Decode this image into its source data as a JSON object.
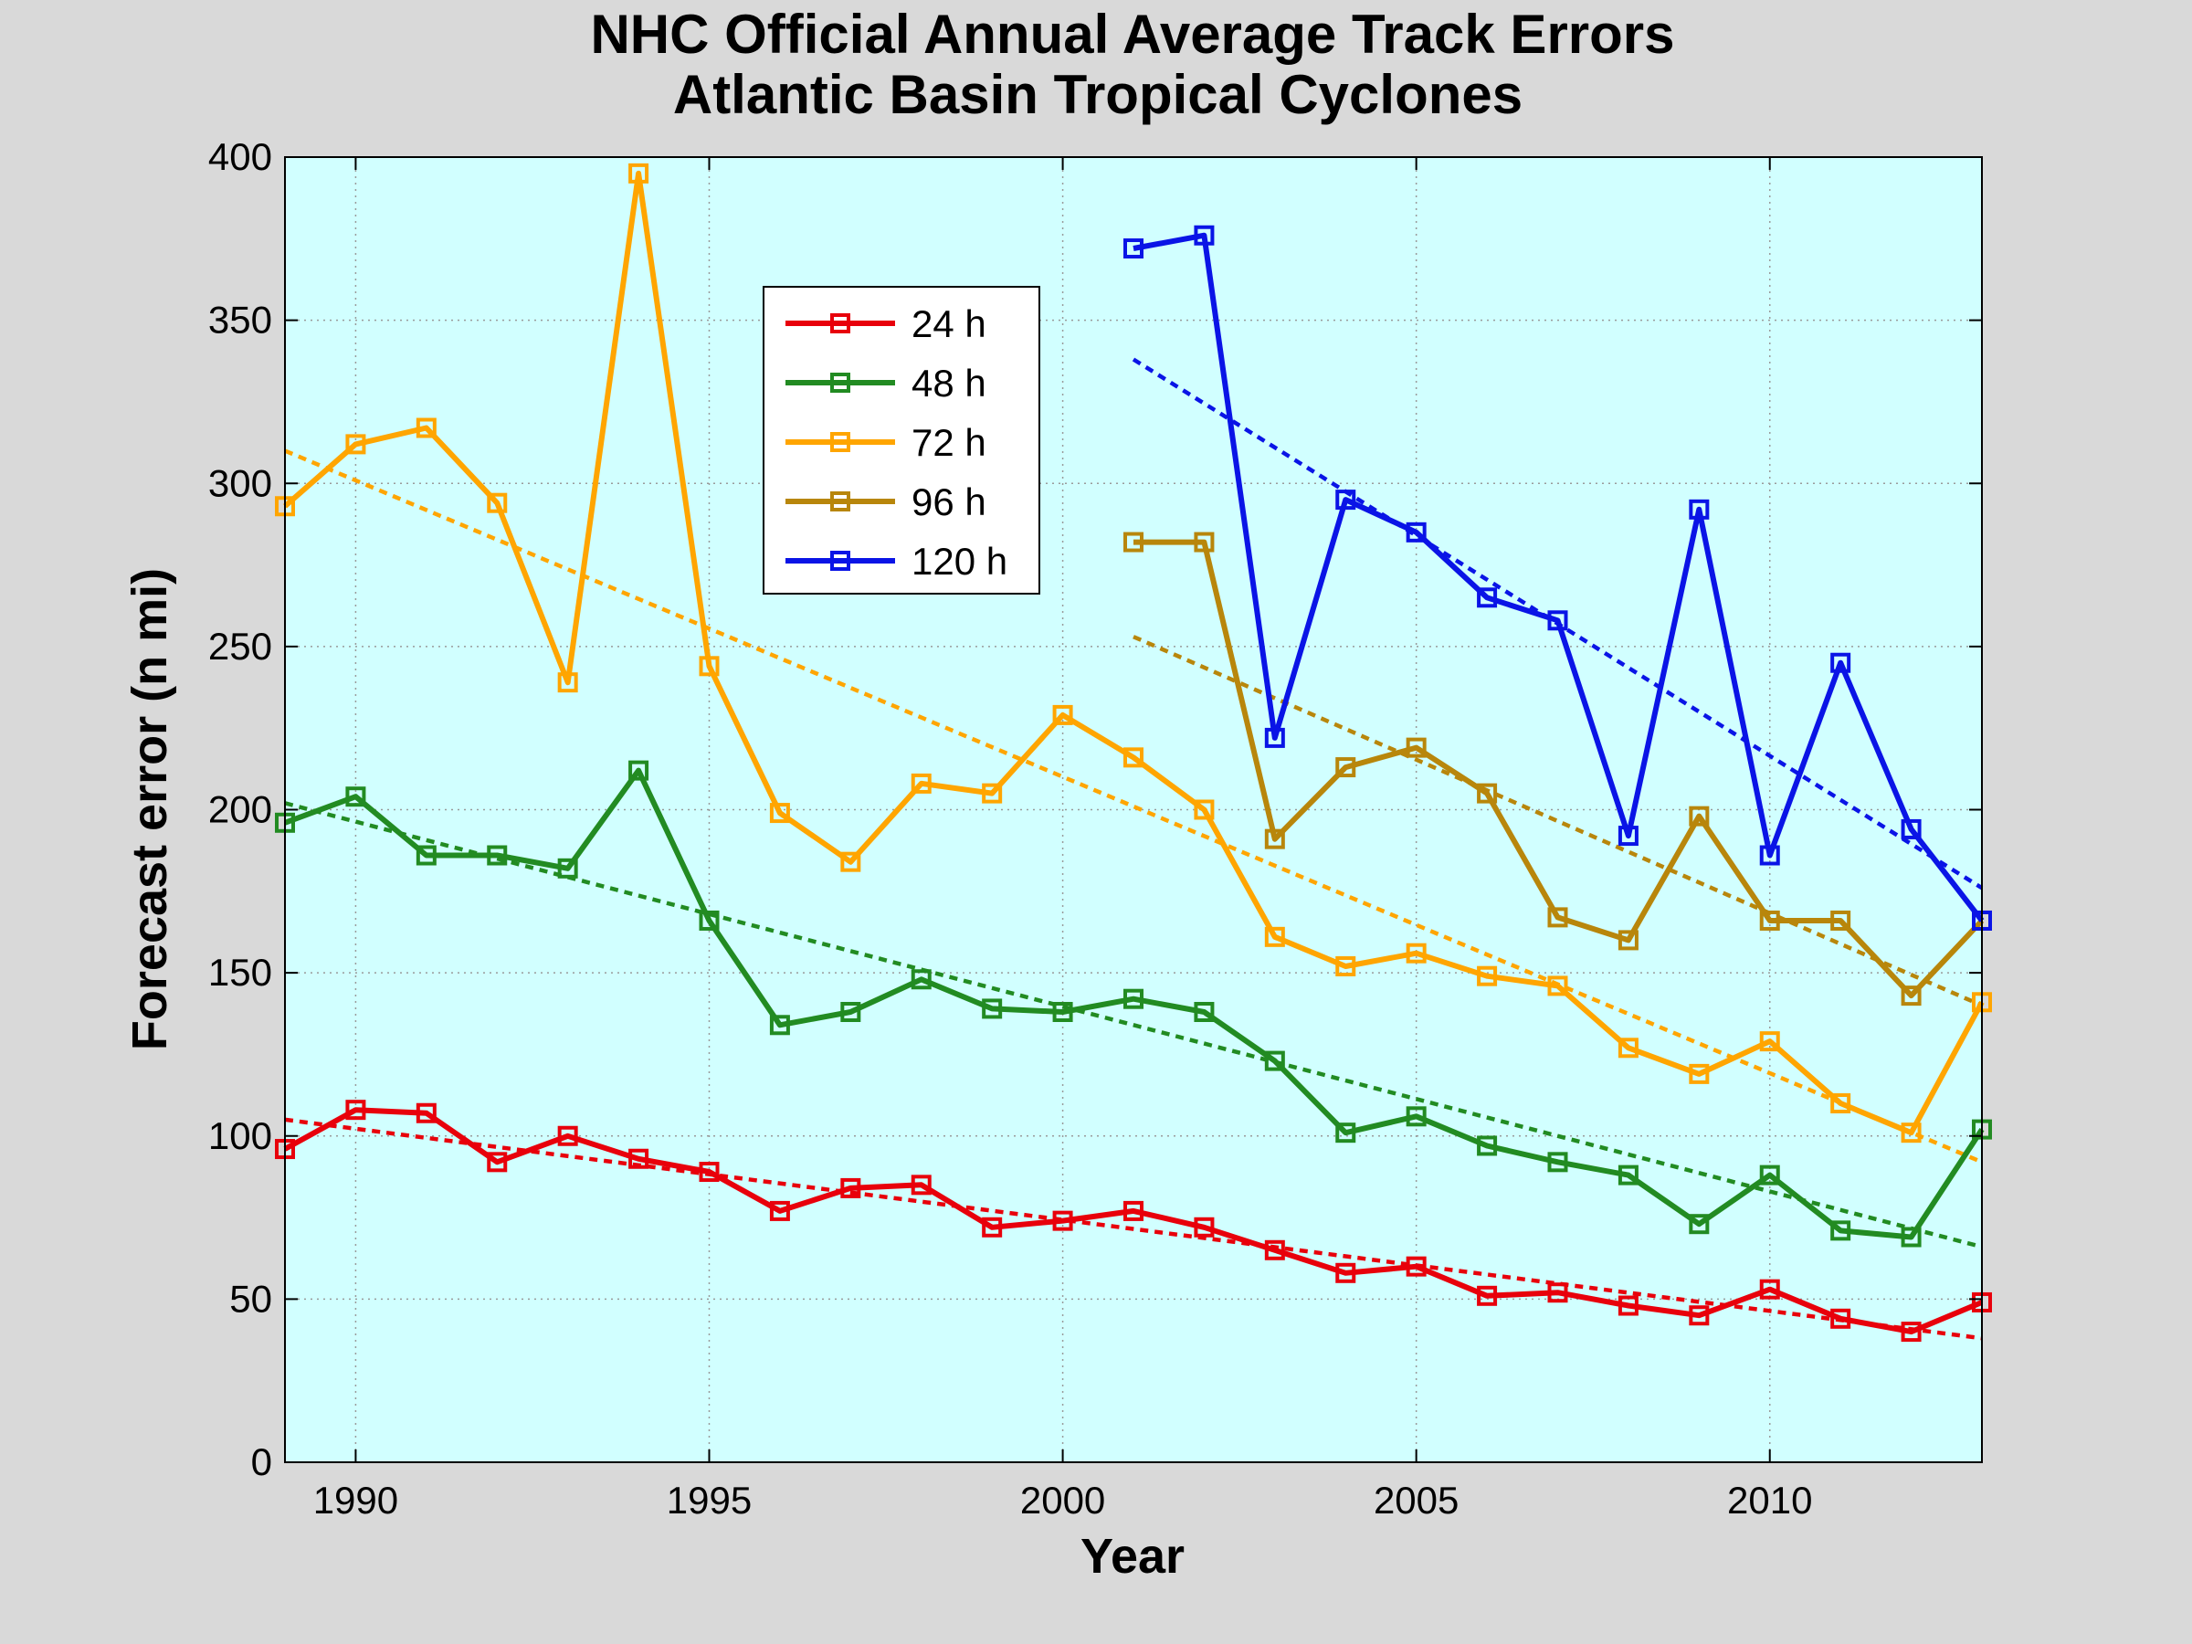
{
  "chart_data": {
    "type": "line",
    "title": "NHC Official Annual Average Track Errors",
    "subtitle": "Atlantic Basin Tropical Cyclones",
    "xlabel": "Year",
    "ylabel": "Forecast error (n mi)",
    "xlim": [
      1989,
      2013
    ],
    "ylim": [
      0,
      400
    ],
    "xticks": [
      1990,
      1995,
      2000,
      2005,
      2010
    ],
    "yticks": [
      0,
      50,
      100,
      150,
      200,
      250,
      300,
      350,
      400
    ],
    "grid": true,
    "legend_position": "upper-left-center",
    "background_color": "#d1ffff",
    "marker": "square",
    "series": [
      {
        "name": "24 h",
        "color": "#e8000b",
        "x": [
          1989,
          1990,
          1991,
          1992,
          1993,
          1994,
          1995,
          1996,
          1997,
          1998,
          1999,
          2000,
          2001,
          2002,
          2003,
          2004,
          2005,
          2006,
          2007,
          2008,
          2009,
          2010,
          2011,
          2012,
          2013
        ],
        "values": [
          96,
          108,
          107,
          92,
          100,
          93,
          89,
          77,
          84,
          85,
          72,
          74,
          77,
          72,
          65,
          58,
          60,
          51,
          52,
          48,
          45,
          53,
          44,
          40,
          49
        ],
        "trend": {
          "x": [
            1989,
            2013
          ],
          "values": [
            105,
            38
          ]
        }
      },
      {
        "name": "48 h",
        "color": "#228b22",
        "x": [
          1989,
          1990,
          1991,
          1992,
          1993,
          1994,
          1995,
          1996,
          1997,
          1998,
          1999,
          2000,
          2001,
          2002,
          2003,
          2004,
          2005,
          2006,
          2007,
          2008,
          2009,
          2010,
          2011,
          2012,
          2013
        ],
        "values": [
          196,
          204,
          186,
          186,
          182,
          212,
          166,
          134,
          138,
          148,
          139,
          138,
          142,
          138,
          123,
          101,
          106,
          97,
          92,
          88,
          73,
          88,
          71,
          69,
          102
        ],
        "trend": {
          "x": [
            1989,
            2013
          ],
          "values": [
            202,
            66
          ]
        }
      },
      {
        "name": "72 h",
        "color": "#ffa500",
        "x": [
          1989,
          1990,
          1991,
          1992,
          1993,
          1994,
          1995,
          1996,
          1997,
          1998,
          1999,
          2000,
          2001,
          2002,
          2003,
          2004,
          2005,
          2006,
          2007,
          2008,
          2009,
          2010,
          2011,
          2012,
          2013
        ],
        "values": [
          293,
          312,
          317,
          294,
          239,
          395,
          244,
          199,
          184,
          208,
          205,
          229,
          216,
          200,
          161,
          152,
          156,
          149,
          146,
          127,
          119,
          129,
          110,
          101,
          141
        ],
        "trend": {
          "x": [
            1989,
            2013
          ],
          "values": [
            310,
            92
          ]
        }
      },
      {
        "name": "96 h",
        "color": "#b8860b",
        "x": [
          2001,
          2002,
          2003,
          2004,
          2005,
          2006,
          2007,
          2008,
          2009,
          2010,
          2011,
          2012,
          2013
        ],
        "values": [
          282,
          282,
          191,
          213,
          219,
          205,
          167,
          160,
          198,
          166,
          166,
          143,
          166
        ],
        "trend": {
          "x": [
            2001,
            2013
          ],
          "values": [
            253,
            140
          ]
        }
      },
      {
        "name": "120 h",
        "color": "#0a14e6",
        "x": [
          2001,
          2002,
          2003,
          2004,
          2005,
          2006,
          2007,
          2008,
          2009,
          2010,
          2011,
          2012,
          2013
        ],
        "values": [
          372,
          376,
          222,
          295,
          285,
          265,
          258,
          192,
          292,
          186,
          245,
          194,
          166
        ],
        "trend": {
          "x": [
            2001,
            2013
          ],
          "values": [
            338,
            176
          ]
        }
      }
    ]
  }
}
